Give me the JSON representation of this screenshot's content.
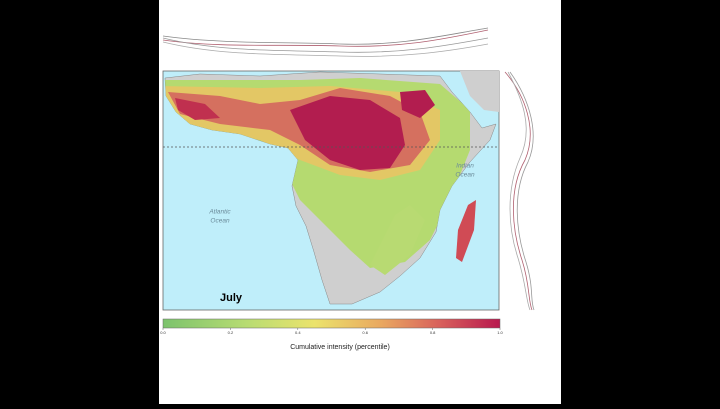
{
  "map": {
    "month": "July",
    "oceans": [
      {
        "lines": [
          "Atlantic",
          "Ocean"
        ]
      },
      {
        "lines": [
          "Indian",
          "Ocean"
        ]
      }
    ]
  },
  "colorbar": {
    "label": "Cumulative intensity (percentile)",
    "lim": [
      0,
      1
    ],
    "ticks": [
      {
        "value": 0,
        "label": "0.0"
      },
      0.2,
      0.4,
      0.6,
      0.8,
      {
        "value": 1,
        "label": "1.0"
      }
    ]
  }
}
